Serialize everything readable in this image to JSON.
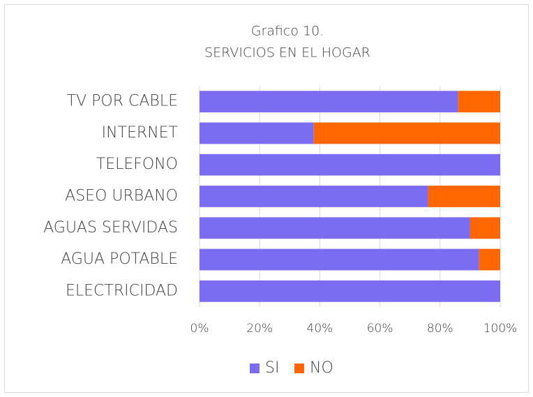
{
  "chart_data": {
    "type": "stacked_barh",
    "title": "Grafico 10.",
    "subtitle": "SERVICIOS EN EL HOGAR",
    "categories": [
      "TV POR CABLE",
      "INTERNET",
      "TELEFONO",
      "ASEO URBANO",
      "AGUAS SERVIDAS",
      "AGUA POTABLE",
      "ELECTRICIDAD"
    ],
    "series": [
      {
        "name": "SI",
        "color": "#7b6cf2",
        "values": [
          86,
          38,
          100,
          76,
          90,
          93,
          100
        ]
      },
      {
        "name": "NO",
        "color": "#ff6600",
        "values": [
          14,
          62,
          0,
          24,
          10,
          7,
          0
        ]
      }
    ],
    "xlim": [
      0,
      100
    ],
    "xticks": [
      {
        "value": 0,
        "label": "0%"
      },
      {
        "value": 20,
        "label": "20%"
      },
      {
        "value": 40,
        "label": "40%"
      },
      {
        "value": 60,
        "label": "60%"
      },
      {
        "value": 80,
        "label": "80%"
      },
      {
        "value": 100,
        "label": "100%"
      }
    ],
    "grid": true,
    "legend": "bottom"
  }
}
